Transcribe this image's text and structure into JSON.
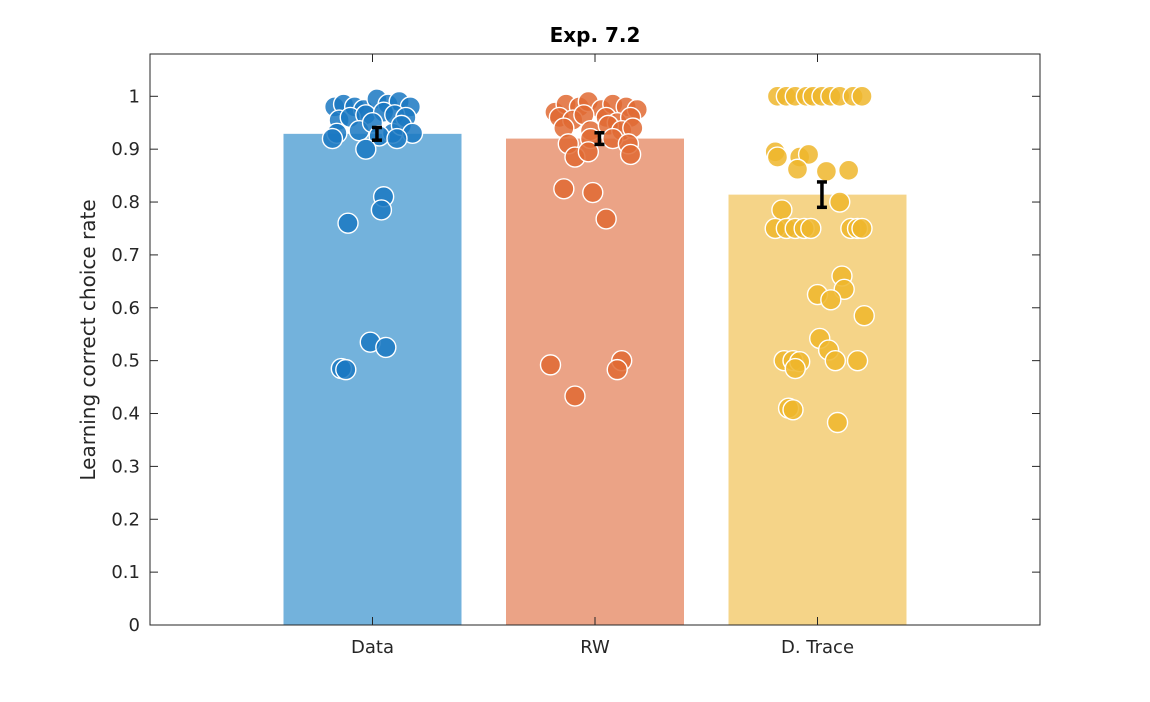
{
  "chart_data": {
    "type": "bar",
    "title": "Exp. 7.2",
    "xlabel": "",
    "ylabel": "Learning correct choice rate",
    "ylim": [
      0,
      1.08
    ],
    "yticks": [
      0,
      0.1,
      0.2,
      0.3,
      0.4,
      0.5,
      0.6,
      0.7,
      0.8,
      0.9,
      1
    ],
    "yticklabels": [
      "0",
      "0.1",
      "0.2",
      "0.3",
      "0.4",
      "0.5",
      "0.6",
      "0.7",
      "0.8",
      "0.9",
      "1"
    ],
    "categories": [
      "Data",
      "RW",
      "D. Trace"
    ],
    "values": [
      0.929,
      0.92,
      0.814
    ],
    "sem": [
      0.012,
      0.011,
      0.024
    ],
    "grid": false,
    "bar_colors": [
      "#73b2dc",
      "#eba386",
      "#f5d488"
    ],
    "point_colors": [
      "#1a78c2",
      "#e06a33",
      "#efb62c"
    ],
    "error_bar_color": "#000000",
    "points": [
      [
        {
          "dx": -0.17,
          "y": 0.98
        },
        {
          "dx": -0.13,
          "y": 0.985
        },
        {
          "dx": -0.08,
          "y": 0.98
        },
        {
          "dx": -0.04,
          "y": 0.975
        },
        {
          "dx": 0.02,
          "y": 0.995
        },
        {
          "dx": 0.07,
          "y": 0.985
        },
        {
          "dx": 0.12,
          "y": 0.99
        },
        {
          "dx": 0.17,
          "y": 0.98
        },
        {
          "dx": -0.15,
          "y": 0.955
        },
        {
          "dx": -0.1,
          "y": 0.96
        },
        {
          "dx": -0.03,
          "y": 0.965
        },
        {
          "dx": 0.05,
          "y": 0.97
        },
        {
          "dx": 0.1,
          "y": 0.965
        },
        {
          "dx": 0.15,
          "y": 0.96
        },
        {
          "dx": -0.16,
          "y": 0.93
        },
        {
          "dx": -0.06,
          "y": 0.935
        },
        {
          "dx": 0.0,
          "y": 0.95
        },
        {
          "dx": 0.09,
          "y": 0.93
        },
        {
          "dx": 0.13,
          "y": 0.945
        },
        {
          "dx": 0.18,
          "y": 0.93
        },
        {
          "dx": -0.18,
          "y": 0.92
        },
        {
          "dx": 0.03,
          "y": 0.925
        },
        {
          "dx": 0.11,
          "y": 0.92
        },
        {
          "dx": -0.03,
          "y": 0.9
        },
        {
          "dx": 0.05,
          "y": 0.81
        },
        {
          "dx": 0.04,
          "y": 0.785
        },
        {
          "dx": -0.11,
          "y": 0.76
        },
        {
          "dx": -0.01,
          "y": 0.535
        },
        {
          "dx": 0.06,
          "y": 0.525
        },
        {
          "dx": -0.14,
          "y": 0.485
        },
        {
          "dx": -0.12,
          "y": 0.483
        }
      ],
      [
        {
          "dx": -0.18,
          "y": 0.97
        },
        {
          "dx": -0.13,
          "y": 0.985
        },
        {
          "dx": -0.07,
          "y": 0.98
        },
        {
          "dx": -0.03,
          "y": 0.99
        },
        {
          "dx": 0.03,
          "y": 0.975
        },
        {
          "dx": 0.08,
          "y": 0.985
        },
        {
          "dx": 0.14,
          "y": 0.98
        },
        {
          "dx": 0.19,
          "y": 0.975
        },
        {
          "dx": -0.16,
          "y": 0.96
        },
        {
          "dx": -0.1,
          "y": 0.955
        },
        {
          "dx": -0.05,
          "y": 0.965
        },
        {
          "dx": 0.05,
          "y": 0.96
        },
        {
          "dx": 0.1,
          "y": 0.95
        },
        {
          "dx": 0.16,
          "y": 0.96
        },
        {
          "dx": -0.14,
          "y": 0.94
        },
        {
          "dx": -0.02,
          "y": 0.935
        },
        {
          "dx": 0.06,
          "y": 0.945
        },
        {
          "dx": 0.12,
          "y": 0.935
        },
        {
          "dx": 0.17,
          "y": 0.94
        },
        {
          "dx": -0.12,
          "y": 0.91
        },
        {
          "dx": -0.02,
          "y": 0.92
        },
        {
          "dx": 0.08,
          "y": 0.92
        },
        {
          "dx": 0.15,
          "y": 0.91
        },
        {
          "dx": -0.09,
          "y": 0.885
        },
        {
          "dx": -0.03,
          "y": 0.895
        },
        {
          "dx": 0.16,
          "y": 0.89
        },
        {
          "dx": -0.14,
          "y": 0.825
        },
        {
          "dx": -0.01,
          "y": 0.818
        },
        {
          "dx": 0.05,
          "y": 0.768
        },
        {
          "dx": 0.12,
          "y": 0.5
        },
        {
          "dx": -0.2,
          "y": 0.492
        },
        {
          "dx": 0.1,
          "y": 0.483
        },
        {
          "dx": -0.09,
          "y": 0.433
        }
      ],
      [
        {
          "dx": -0.18,
          "y": 1.0
        },
        {
          "dx": -0.14,
          "y": 1.0
        },
        {
          "dx": -0.1,
          "y": 1.0
        },
        {
          "dx": -0.05,
          "y": 1.0
        },
        {
          "dx": -0.02,
          "y": 1.0
        },
        {
          "dx": 0.02,
          "y": 1.0
        },
        {
          "dx": 0.06,
          "y": 1.0
        },
        {
          "dx": 0.1,
          "y": 1.0
        },
        {
          "dx": 0.16,
          "y": 1.0
        },
        {
          "dx": 0.2,
          "y": 1.0
        },
        {
          "dx": -0.19,
          "y": 0.895
        },
        {
          "dx": -0.18,
          "y": 0.885
        },
        {
          "dx": -0.08,
          "y": 0.885
        },
        {
          "dx": -0.04,
          "y": 0.89
        },
        {
          "dx": -0.09,
          "y": 0.862
        },
        {
          "dx": 0.04,
          "y": 0.858
        },
        {
          "dx": 0.14,
          "y": 0.86
        },
        {
          "dx": 0.1,
          "y": 0.8
        },
        {
          "dx": -0.16,
          "y": 0.785
        },
        {
          "dx": -0.19,
          "y": 0.75
        },
        {
          "dx": -0.14,
          "y": 0.75
        },
        {
          "dx": -0.1,
          "y": 0.75
        },
        {
          "dx": -0.06,
          "y": 0.75
        },
        {
          "dx": -0.03,
          "y": 0.75
        },
        {
          "dx": 0.15,
          "y": 0.75
        },
        {
          "dx": 0.18,
          "y": 0.75
        },
        {
          "dx": 0.2,
          "y": 0.75
        },
        {
          "dx": 0.11,
          "y": 0.66
        },
        {
          "dx": 0.12,
          "y": 0.635
        },
        {
          "dx": 0.0,
          "y": 0.625
        },
        {
          "dx": 0.06,
          "y": 0.615
        },
        {
          "dx": 0.21,
          "y": 0.585
        },
        {
          "dx": 0.01,
          "y": 0.542
        },
        {
          "dx": 0.05,
          "y": 0.52
        },
        {
          "dx": -0.15,
          "y": 0.5
        },
        {
          "dx": -0.11,
          "y": 0.5
        },
        {
          "dx": -0.08,
          "y": 0.498
        },
        {
          "dx": 0.08,
          "y": 0.5
        },
        {
          "dx": 0.18,
          "y": 0.5
        },
        {
          "dx": -0.1,
          "y": 0.485
        },
        {
          "dx": -0.13,
          "y": 0.41
        },
        {
          "dx": -0.11,
          "y": 0.407
        },
        {
          "dx": 0.09,
          "y": 0.383
        }
      ]
    ]
  }
}
